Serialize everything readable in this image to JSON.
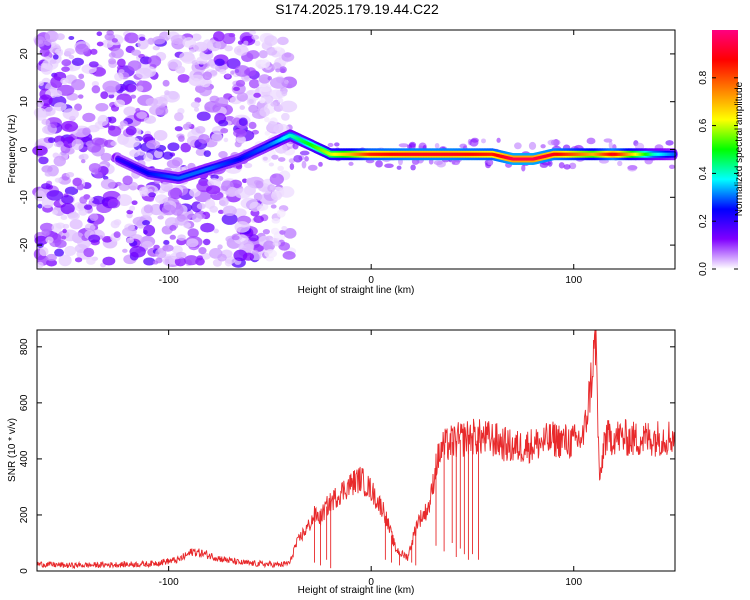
{
  "title": "S174.2025.179.19.44.C22",
  "chart_data": [
    {
      "type": "heatmap",
      "xlabel": "Height of straight line (km)",
      "ylabel": "Frequency (Hz)",
      "xlim": [
        -165,
        150
      ],
      "ylim": [
        -25,
        25
      ],
      "xticks": [
        -100,
        0,
        100
      ],
      "yticks": [
        -20,
        -10,
        0,
        10,
        20
      ],
      "colorbar": {
        "label": "Normalized spectral amplitude",
        "range": [
          0,
          1
        ],
        "ticks": [
          0,
          0.2,
          0.4,
          0.6,
          0.8
        ],
        "colormap": [
          "#ffffff",
          "#8000ff",
          "#0000ff",
          "#00ffff",
          "#00ff00",
          "#ffff00",
          "#ff8000",
          "#ff0000",
          "#ff0080"
        ]
      },
      "ridge": {
        "description_points_x": [
          -125,
          -110,
          -95,
          -80,
          -65,
          -50,
          -40,
          -30,
          -20,
          -10,
          0,
          20,
          40,
          60,
          70,
          80,
          90,
          100,
          110,
          120,
          140,
          150
        ],
        "frequency_hz": [
          -2,
          -5,
          -6,
          -4,
          -2,
          1,
          3,
          1,
          -1,
          -1,
          -1,
          -1,
          -1,
          -1,
          -2,
          -2,
          -1,
          -1,
          -1,
          -1,
          -1,
          -1
        ],
        "amplitude": [
          0.2,
          0.25,
          0.3,
          0.3,
          0.25,
          0.3,
          0.4,
          0.5,
          0.6,
          0.7,
          0.85,
          0.9,
          0.9,
          0.85,
          0.95,
          0.95,
          0.9,
          0.8,
          0.7,
          0.9,
          0.4,
          0.3
        ]
      }
    },
    {
      "type": "line",
      "xlabel": "Height of straight line (km)",
      "ylabel": "SNR (10 * v/v)",
      "xlim": [
        -165,
        150
      ],
      "ylim": [
        0,
        860
      ],
      "xticks": [
        -100,
        0,
        100
      ],
      "yticks": [
        0,
        200,
        400,
        600,
        800
      ],
      "color": "#e8292b",
      "series": [
        {
          "x": [
            -165,
            -150,
            -130,
            -110,
            -95,
            -88,
            -82,
            -75,
            -65,
            -55,
            -45,
            -40,
            -38,
            -35,
            -30,
            -28,
            -25,
            -22,
            -18,
            -15,
            -12,
            -8,
            -5,
            -3,
            0,
            3,
            6,
            9,
            12,
            15,
            18,
            20,
            23,
            26,
            29,
            32,
            35,
            40,
            50,
            60,
            70,
            80,
            90,
            100,
            105,
            108,
            110,
            111,
            112,
            113,
            115,
            120,
            130,
            140,
            150
          ],
          "y": [
            25,
            20,
            22,
            25,
            40,
            70,
            60,
            45,
            30,
            25,
            22,
            30,
            80,
            120,
            170,
            200,
            190,
            230,
            260,
            280,
            300,
            320,
            330,
            310,
            290,
            250,
            220,
            150,
            80,
            60,
            50,
            100,
            180,
            200,
            240,
            380,
            440,
            460,
            480,
            470,
            440,
            450,
            470,
            460,
            480,
            640,
            780,
            840,
            500,
            300,
            470,
            480,
            470,
            475,
            480
          ]
        }
      ],
      "dropouts": {
        "x": [
          -28,
          -25,
          -22,
          -20,
          7,
          10,
          14,
          18,
          20,
          22,
          32,
          36,
          40,
          42,
          44,
          46,
          48,
          50,
          53
        ],
        "y": [
          30,
          20,
          40,
          10,
          40,
          30,
          20,
          50,
          30,
          20,
          90,
          70,
          100,
          50,
          80,
          60,
          40,
          60,
          40
        ]
      }
    }
  ]
}
